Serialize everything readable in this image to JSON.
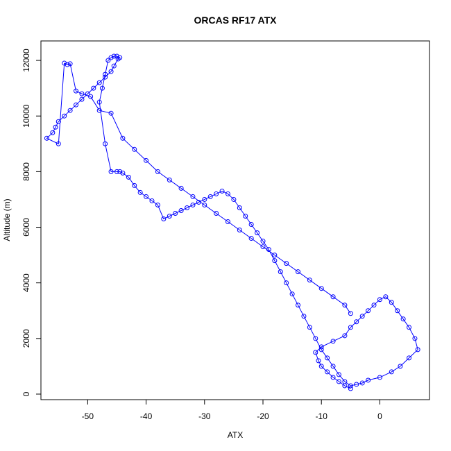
{
  "chart_data": {
    "type": "line",
    "title": "ORCAS RF17 ATX",
    "xlabel": "ATX",
    "ylabel": "Altitude (m)",
    "xlim": [
      -58,
      8.5
    ],
    "ylim": [
      -200,
      12700
    ],
    "xticks": [
      -50,
      -40,
      -30,
      -20,
      -10,
      0
    ],
    "yticks": [
      0,
      2000,
      4000,
      6000,
      8000,
      10000,
      12000
    ],
    "grid": false,
    "legend": "none",
    "series": [
      {
        "color": "#0000ff",
        "marker": "open-circle",
        "x": [
          -5,
          -6,
          -7,
          -8,
          -9,
          -10,
          -10.5,
          -11,
          -10,
          -8,
          -6,
          -5,
          -4,
          -3,
          -2,
          -1,
          0,
          1,
          2,
          3,
          4,
          5,
          6,
          6.5,
          5,
          3.5,
          2,
          0,
          -2,
          -3,
          -4,
          -5,
          -6,
          -7,
          -8,
          -9,
          -10,
          -11,
          -12,
          -13,
          -14,
          -15,
          -16,
          -17,
          -18,
          -19,
          -20,
          -21,
          -22,
          -23,
          -24,
          -25,
          -26,
          -27,
          -28,
          -29,
          -30,
          -31,
          -32,
          -33,
          -34,
          -35,
          -36,
          -37,
          -38,
          -39,
          -40,
          -41,
          -42,
          -43,
          -44,
          -44.5,
          -45,
          -46,
          -47,
          -48,
          -47.5,
          -47,
          -46.5,
          -46,
          -45.5,
          -45,
          -44.5,
          -44.8,
          -45.5,
          -46,
          -47,
          -48,
          -49,
          -50,
          -51,
          -52,
          -53,
          -54,
          -55,
          -55.5,
          -56,
          -57,
          -55,
          -54,
          -53.5,
          -53,
          -52,
          -51,
          -49.5,
          -48,
          -46,
          -44,
          -42,
          -40,
          -38,
          -36,
          -34,
          -32,
          -30,
          -28,
          -26,
          -24,
          -22,
          -20,
          -18,
          -16,
          -14,
          -12,
          -10,
          -8,
          -6,
          -5
        ],
        "y": [
          200,
          300,
          450,
          600,
          800,
          1000,
          1200,
          1500,
          1700,
          1900,
          2100,
          2400,
          2600,
          2800,
          3000,
          3200,
          3400,
          3500,
          3300,
          3000,
          2700,
          2400,
          2000,
          1600,
          1300,
          1000,
          800,
          600,
          500,
          400,
          350,
          300,
          450,
          700,
          1000,
          1300,
          1600,
          2000,
          2400,
          2800,
          3200,
          3600,
          4000,
          4400,
          4800,
          5200,
          5500,
          5800,
          6100,
          6400,
          6700,
          7000,
          7200,
          7300,
          7200,
          7100,
          7000,
          6900,
          6800,
          6700,
          6600,
          6500,
          6400,
          6300,
          6800,
          6950,
          7100,
          7250,
          7500,
          7800,
          7950,
          8000,
          8000,
          8000,
          9000,
          10500,
          11000,
          11500,
          12000,
          12100,
          12150,
          12150,
          12100,
          12050,
          11800,
          11600,
          11400,
          11200,
          11000,
          10800,
          10600,
          10400,
          10200,
          10000,
          9800,
          9600,
          9400,
          9200,
          9000,
          11900,
          11850,
          11880,
          10900,
          10800,
          10700,
          10200,
          10100,
          9200,
          8800,
          8400,
          8000,
          7700,
          7400,
          7100,
          6800,
          6500,
          6200,
          5900,
          5600,
          5300,
          5000,
          4700,
          4400,
          4100,
          3800,
          3500,
          3200,
          2900
        ]
      }
    ]
  }
}
